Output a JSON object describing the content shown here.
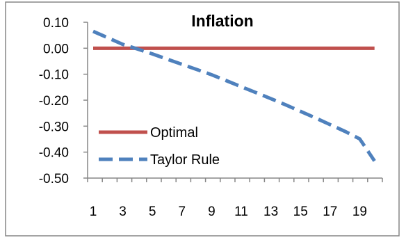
{
  "chart_data": {
    "type": "line",
    "title": "Inflation",
    "xlabel": "",
    "ylabel": "",
    "x": [
      1,
      2,
      3,
      4,
      5,
      6,
      7,
      8,
      9,
      10,
      11,
      12,
      13,
      14,
      15,
      16,
      17,
      18,
      19,
      20
    ],
    "x_tick_labels": [
      "1",
      "3",
      "5",
      "7",
      "9",
      "11",
      "13",
      "15",
      "17",
      "19"
    ],
    "y_tick_labels": [
      "0.10",
      "0.00",
      "-0.10",
      "-0.20",
      "-0.30",
      "-0.40",
      "-0.50"
    ],
    "ylim": [
      -0.5,
      0.1
    ],
    "xlim": [
      1,
      20
    ],
    "grid": false,
    "legend_position": "lower-left",
    "series": [
      {
        "name": "Optimal",
        "color": "#c0504d",
        "style": "solid",
        "values": [
          0,
          0,
          0,
          0,
          0,
          0,
          0,
          0,
          0,
          0,
          0,
          0,
          0,
          0,
          0,
          0,
          0,
          0,
          0,
          0
        ]
      },
      {
        "name": "Taylor Rule",
        "color": "#4f81bd",
        "style": "dashed",
        "values": [
          0.065,
          0.04,
          0.015,
          -0.003,
          -0.022,
          -0.042,
          -0.062,
          -0.082,
          -0.102,
          -0.125,
          -0.148,
          -0.171,
          -0.194,
          -0.218,
          -0.243,
          -0.268,
          -0.294,
          -0.32,
          -0.349,
          -0.434
        ]
      }
    ]
  }
}
